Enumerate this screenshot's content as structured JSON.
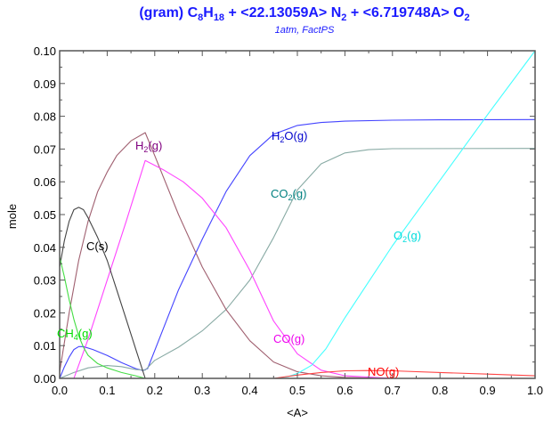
{
  "chart_data": {
    "type": "line",
    "title_segments": [
      {
        "t": "(gram) C"
      },
      {
        "s": "8"
      },
      {
        "t": "H"
      },
      {
        "s": "18"
      },
      {
        "t": " +  <22.13059A> N"
      },
      {
        "s": "2"
      },
      {
        "t": " +  <6.719748A> O"
      },
      {
        "s": "2"
      }
    ],
    "subtitle": "1atm, FactPS",
    "xlabel": "<A>",
    "ylabel": "mole",
    "xlim": [
      0,
      1.0
    ],
    "ylim": [
      0,
      0.1
    ],
    "xticks": [
      "0.0",
      "0.1",
      "0.2",
      "0.3",
      "0.4",
      "0.5",
      "0.6",
      "0.7",
      "0.8",
      "0.9",
      "1.0"
    ],
    "yticks": [
      "0.00",
      "0.01",
      "0.02",
      "0.03",
      "0.04",
      "0.05",
      "0.06",
      "0.07",
      "0.08",
      "0.09",
      "0.10"
    ],
    "grid": false,
    "series": [
      {
        "name": "H2O(g)",
        "color": "#4444ff",
        "label_color": "#0000cc",
        "points": [
          [
            0,
            0
          ],
          [
            0.01,
            0.0035
          ],
          [
            0.02,
            0.0065
          ],
          [
            0.03,
            0.0088
          ],
          [
            0.04,
            0.0097
          ],
          [
            0.05,
            0.0097
          ],
          [
            0.07,
            0.0088
          ],
          [
            0.1,
            0.007
          ],
          [
            0.13,
            0.0048
          ],
          [
            0.16,
            0.003
          ],
          [
            0.175,
            0.0024
          ],
          [
            0.185,
            0.003
          ],
          [
            0.2,
            0.0085
          ],
          [
            0.25,
            0.027
          ],
          [
            0.3,
            0.0425
          ],
          [
            0.35,
            0.057
          ],
          [
            0.4,
            0.068
          ],
          [
            0.45,
            0.0745
          ],
          [
            0.5,
            0.0772
          ],
          [
            0.55,
            0.0781
          ],
          [
            0.6,
            0.0785
          ],
          [
            0.7,
            0.0788
          ],
          [
            0.8,
            0.0789
          ],
          [
            1.0,
            0.079
          ]
        ]
      },
      {
        "name": "CO2(g)",
        "color": "#88aaa4",
        "label_color": "#008080",
        "points": [
          [
            0,
            0
          ],
          [
            0.03,
            0.0018
          ],
          [
            0.06,
            0.0032
          ],
          [
            0.1,
            0.0039
          ],
          [
            0.13,
            0.0036
          ],
          [
            0.16,
            0.0027
          ],
          [
            0.18,
            0.0025
          ],
          [
            0.2,
            0.0055
          ],
          [
            0.25,
            0.0095
          ],
          [
            0.3,
            0.0145
          ],
          [
            0.35,
            0.021
          ],
          [
            0.4,
            0.03
          ],
          [
            0.45,
            0.043
          ],
          [
            0.5,
            0.0575
          ],
          [
            0.55,
            0.0655
          ],
          [
            0.6,
            0.0688
          ],
          [
            0.65,
            0.0698
          ],
          [
            0.7,
            0.0701
          ],
          [
            1.0,
            0.0702
          ]
        ]
      },
      {
        "name": "H2(g)",
        "color": "#a06070",
        "label_color": "#800080",
        "points": [
          [
            0,
            0.002
          ],
          [
            0.02,
            0.02
          ],
          [
            0.04,
            0.036
          ],
          [
            0.06,
            0.048
          ],
          [
            0.08,
            0.057
          ],
          [
            0.1,
            0.063
          ],
          [
            0.12,
            0.068
          ],
          [
            0.15,
            0.0725
          ],
          [
            0.18,
            0.075
          ],
          [
            0.2,
            0.068
          ],
          [
            0.25,
            0.05
          ],
          [
            0.3,
            0.034
          ],
          [
            0.35,
            0.021
          ],
          [
            0.4,
            0.0115
          ],
          [
            0.45,
            0.005
          ],
          [
            0.5,
            0.002
          ],
          [
            0.55,
            0.0008
          ],
          [
            0.6,
            0.0003
          ],
          [
            0.7,
            0
          ]
        ]
      },
      {
        "name": "CO(g)",
        "color": "#ff44ff",
        "label_color": "#ee00ee",
        "points": [
          [
            0,
            0
          ],
          [
            0.03,
            0
          ],
          [
            0.06,
            0.012
          ],
          [
            0.1,
            0.03
          ],
          [
            0.14,
            0.048
          ],
          [
            0.18,
            0.0665
          ],
          [
            0.22,
            0.0635
          ],
          [
            0.26,
            0.06
          ],
          [
            0.3,
            0.055
          ],
          [
            0.35,
            0.046
          ],
          [
            0.4,
            0.033
          ],
          [
            0.45,
            0.0175
          ],
          [
            0.5,
            0.0075
          ],
          [
            0.55,
            0.0025
          ],
          [
            0.6,
            0.0008
          ],
          [
            0.7,
            0
          ]
        ]
      },
      {
        "name": "C(s)",
        "color": "#444444",
        "label_color": "#000000",
        "points": [
          [
            0,
            0.034
          ],
          [
            0.01,
            0.042
          ],
          [
            0.02,
            0.048
          ],
          [
            0.03,
            0.0515
          ],
          [
            0.04,
            0.0522
          ],
          [
            0.05,
            0.0515
          ],
          [
            0.06,
            0.049
          ],
          [
            0.08,
            0.043
          ],
          [
            0.1,
            0.036
          ],
          [
            0.12,
            0.027
          ],
          [
            0.14,
            0.018
          ],
          [
            0.16,
            0.009
          ],
          [
            0.18,
            0
          ]
        ]
      },
      {
        "name": "CH4(g)",
        "color": "#44dd44",
        "label_color": "#00dd00",
        "points": [
          [
            0,
            0.037
          ],
          [
            0.01,
            0.031
          ],
          [
            0.02,
            0.024
          ],
          [
            0.03,
            0.018
          ],
          [
            0.04,
            0.013
          ],
          [
            0.05,
            0.0095
          ],
          [
            0.06,
            0.007
          ],
          [
            0.08,
            0.0045
          ],
          [
            0.1,
            0.0032
          ],
          [
            0.13,
            0.0018
          ],
          [
            0.16,
            0.0008
          ],
          [
            0.18,
            0
          ]
        ]
      },
      {
        "name": "O2(g)",
        "color": "#44ffff",
        "label_color": "#00dddd",
        "points": [
          [
            0.45,
            0
          ],
          [
            0.48,
            0.0005
          ],
          [
            0.5,
            0.0015
          ],
          [
            0.53,
            0.004
          ],
          [
            0.56,
            0.009
          ],
          [
            0.6,
            0.0185
          ],
          [
            0.65,
            0.0295
          ],
          [
            0.7,
            0.0405
          ],
          [
            0.8,
            0.0605
          ],
          [
            0.9,
            0.0805
          ],
          [
            1.0,
            0.1
          ]
        ]
      },
      {
        "name": "NO(g)",
        "color": "#ff4444",
        "label_color": "#ff0000",
        "points": [
          [
            0.45,
            0
          ],
          [
            0.5,
            0.001
          ],
          [
            0.55,
            0.0018
          ],
          [
            0.6,
            0.0023
          ],
          [
            0.65,
            0.0024
          ],
          [
            0.7,
            0.0023
          ],
          [
            0.8,
            0.0018
          ],
          [
            0.9,
            0.0013
          ],
          [
            1.0,
            0.0008
          ]
        ]
      }
    ]
  }
}
